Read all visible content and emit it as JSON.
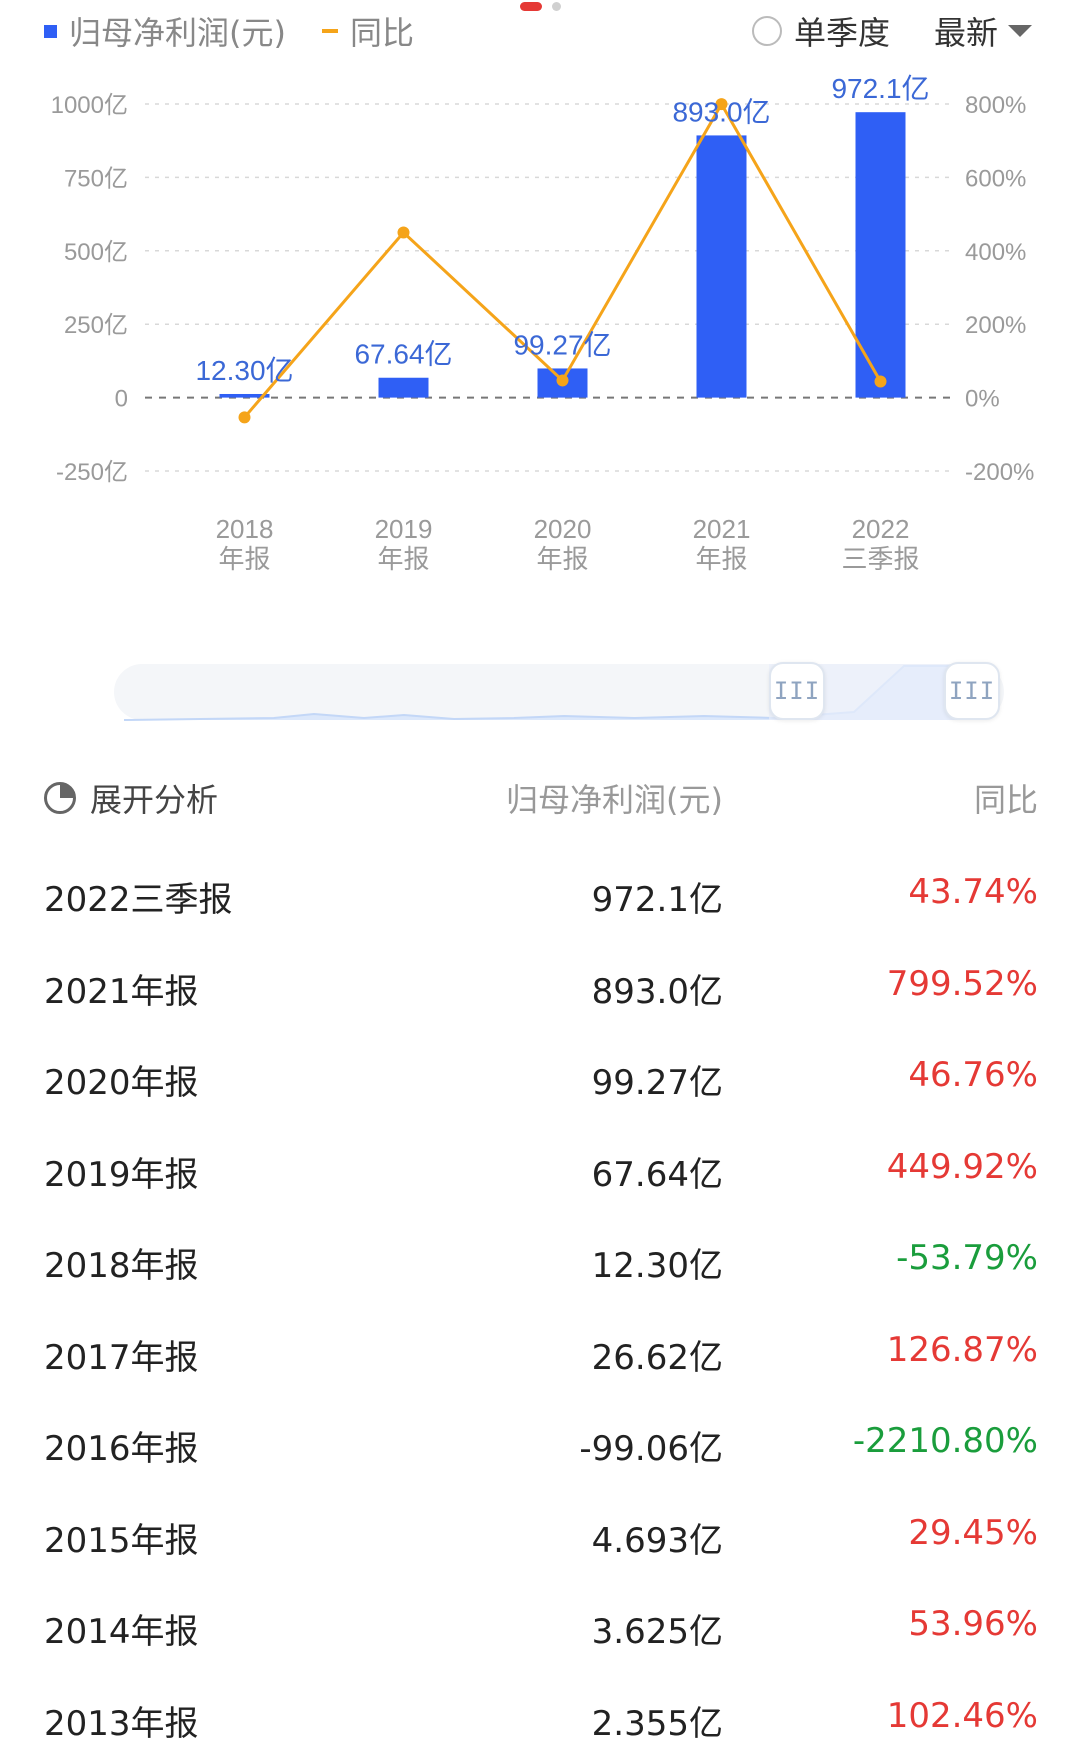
{
  "legend": {
    "series1": "归母净利润(元)",
    "series2": "同比"
  },
  "controls": {
    "single_quarter": "单季度",
    "latest": "最新"
  },
  "colors": {
    "bar": "#2f5ff5",
    "line": "#f5a41a",
    "up": "#e53935",
    "down": "#1a9d3c"
  },
  "chart_data": {
    "type": "bar",
    "categories": [
      [
        "2018",
        "年报"
      ],
      [
        "2019",
        "年报"
      ],
      [
        "2020",
        "年报"
      ],
      [
        "2021",
        "年报"
      ],
      [
        "2022",
        "三季报"
      ]
    ],
    "series": [
      {
        "name": "归母净利润(元)",
        "type": "bar",
        "axis": "left",
        "values": [
          12.3,
          67.64,
          99.27,
          893.0,
          972.1
        ],
        "labels": [
          "12.30亿",
          "67.64亿",
          "99.27亿",
          "893.0亿",
          "972.1亿"
        ]
      },
      {
        "name": "同比",
        "type": "line",
        "axis": "right",
        "values": [
          -53.79,
          449.92,
          46.76,
          799.52,
          43.74
        ]
      }
    ],
    "y_left": {
      "ticks": [
        1000,
        750,
        500,
        250,
        0,
        -250
      ],
      "labels": [
        "1000亿",
        "750亿",
        "500亿",
        "250亿",
        "0",
        "-250亿"
      ],
      "range": [
        -250,
        1000
      ]
    },
    "y_right": {
      "ticks": [
        800,
        600,
        400,
        200,
        0,
        -200
      ],
      "labels": [
        "800%",
        "600%",
        "400%",
        "200%",
        "0%",
        "-200%"
      ],
      "range": [
        -200,
        800
      ]
    },
    "grid": true
  },
  "table": {
    "header": {
      "expand": "展开分析",
      "col2": "归母净利润(元)",
      "col3": "同比"
    },
    "rows": [
      {
        "period": "2022三季报",
        "value": "972.1亿",
        "yoy": "43.74%",
        "trend": "up"
      },
      {
        "period": "2021年报",
        "value": "893.0亿",
        "yoy": "799.52%",
        "trend": "up"
      },
      {
        "period": "2020年报",
        "value": "99.27亿",
        "yoy": "46.76%",
        "trend": "up"
      },
      {
        "period": "2019年报",
        "value": "67.64亿",
        "yoy": "449.92%",
        "trend": "up"
      },
      {
        "period": "2018年报",
        "value": "12.30亿",
        "yoy": "-53.79%",
        "trend": "down"
      },
      {
        "period": "2017年报",
        "value": "26.62亿",
        "yoy": "126.87%",
        "trend": "up"
      },
      {
        "period": "2016年报",
        "value": "-99.06亿",
        "yoy": "-2210.80%",
        "trend": "down"
      },
      {
        "period": "2015年报",
        "value": "4.693亿",
        "yoy": "29.45%",
        "trend": "up"
      },
      {
        "period": "2014年报",
        "value": "3.625亿",
        "yoy": "53.96%",
        "trend": "up"
      },
      {
        "period": "2013年报",
        "value": "2.355亿",
        "yoy": "102.46%",
        "trend": "up"
      }
    ]
  }
}
